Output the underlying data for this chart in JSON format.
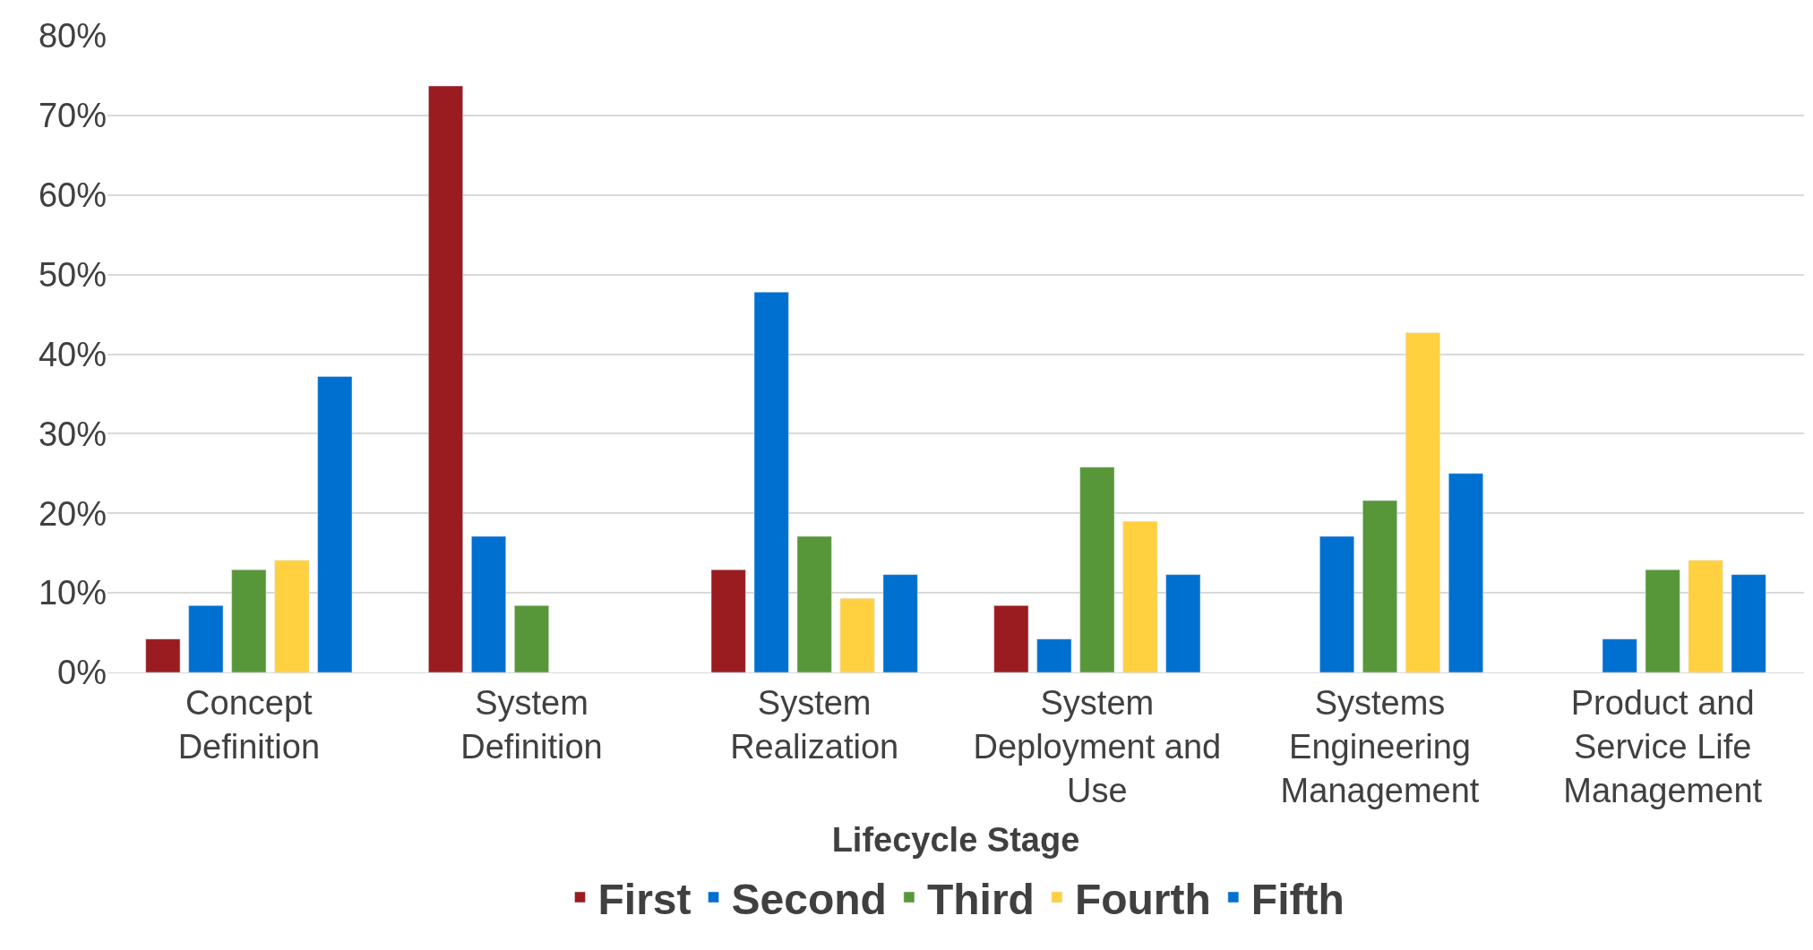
{
  "chart_data": {
    "type": "bar",
    "xlabel": "Lifecycle Stage",
    "categories": [
      "Concept Definition",
      "System Definition",
      "System Realization",
      "System Deployment and Use",
      "Systems Engineering Management",
      "Product and Service Life Management"
    ],
    "series": [
      {
        "name": "First",
        "color": "#9b1c20",
        "values": [
          4.2,
          73.7,
          12.9,
          8.4,
          null,
          null
        ]
      },
      {
        "name": "Second",
        "color": "#0070d0",
        "values": [
          8.4,
          17.1,
          47.8,
          4.2,
          17.1,
          4.2
        ]
      },
      {
        "name": "Third",
        "color": "#58963a",
        "values": [
          12.9,
          8.4,
          17.1,
          25.8,
          21.6,
          12.9
        ]
      },
      {
        "name": "Fourth",
        "color": "#ffd040",
        "values": [
          14.1,
          null,
          9.3,
          19.0,
          42.7,
          14.1
        ]
      },
      {
        "name": "Fifth",
        "color": "#0070d0",
        "values": [
          37.2,
          null,
          12.3,
          12.3,
          25.0,
          12.3
        ]
      }
    ],
    "ylim": [
      0,
      80
    ],
    "yticks": [
      {
        "value": 0,
        "label": "0%"
      },
      {
        "value": 10,
        "label": "10%"
      },
      {
        "value": 20,
        "label": "20%"
      },
      {
        "value": 30,
        "label": "30%"
      },
      {
        "value": 40,
        "label": "40%"
      },
      {
        "value": 50,
        "label": "50%"
      },
      {
        "value": 60,
        "label": "60%"
      },
      {
        "value": 70,
        "label": "70%"
      },
      {
        "value": 80,
        "label": "80%"
      }
    ],
    "grid": "y",
    "legend": "bottom"
  }
}
